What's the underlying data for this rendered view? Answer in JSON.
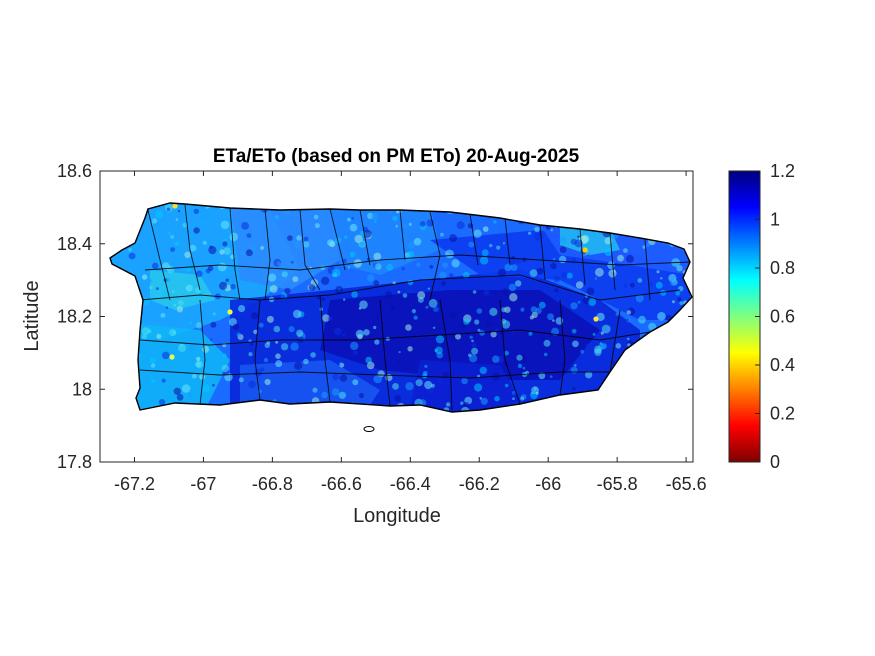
{
  "chart_data": {
    "type": "heatmap",
    "title": "ETa/ETo (based on PM ETo) 20-Aug-2025",
    "xlabel": "Longitude",
    "ylabel": "Latitude",
    "xlim": [
      -67.3,
      -65.58
    ],
    "ylim": [
      17.8,
      18.6
    ],
    "x_ticks": [
      -67.2,
      -67,
      -66.8,
      -66.6,
      -66.4,
      -66.2,
      -66,
      -65.8,
      -65.6
    ],
    "x_tick_labels": [
      "-67.2",
      "-67",
      "-66.8",
      "-66.6",
      "-66.4",
      "-66.2",
      "-66",
      "-65.8",
      "-65.6"
    ],
    "y_ticks": [
      17.8,
      18,
      18.2,
      18.4,
      18.6
    ],
    "y_tick_labels": [
      "17.8",
      "18",
      "18.2",
      "18.4",
      "18.6"
    ],
    "colorbar": {
      "min": 0,
      "max": 1.2,
      "colormap": "jet",
      "ticks": [
        0,
        0.2,
        0.4,
        0.6,
        0.8,
        1,
        1.2
      ],
      "tick_labels": [
        "0",
        "0.2",
        "0.4",
        "0.6",
        "0.8",
        "1",
        "1.2"
      ]
    },
    "grid": false,
    "map_region": "island map with municipality boundaries; values mostly 0.7-1.15, highest (~1.1) across the central-south and east, ~0.8 in the west and along the north coast"
  },
  "colors": {
    "outline": "#000000",
    "axis": "#262626"
  }
}
